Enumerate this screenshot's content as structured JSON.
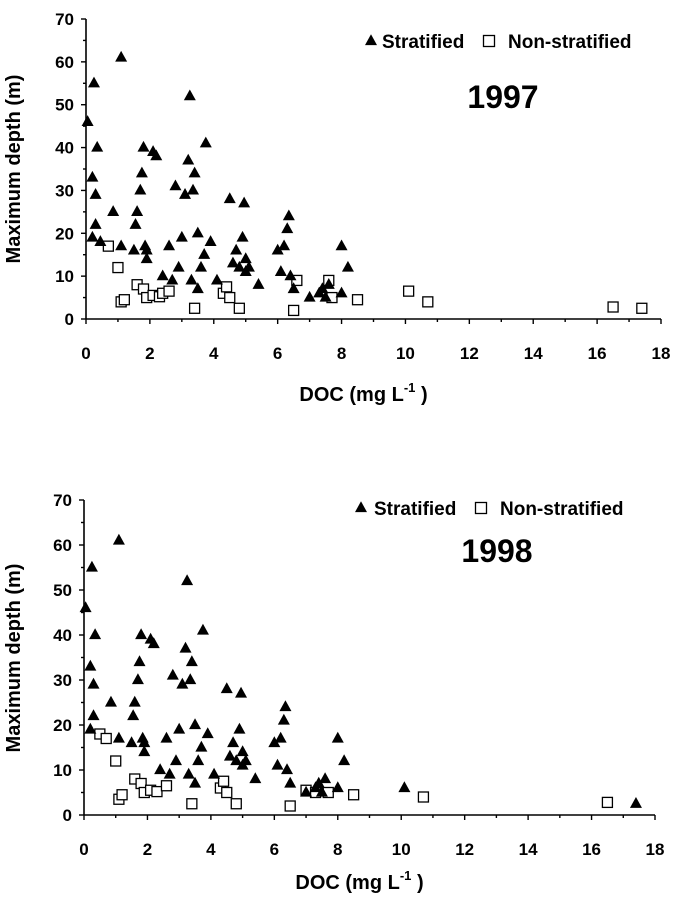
{
  "chart_data": [
    {
      "type": "scatter",
      "title": "1997",
      "xlabel": "DOC (mg L",
      "xlabel_sup": "-1",
      "xlabel_end": ")",
      "ylabel": "Maximum depth (m)",
      "xlim": [
        0,
        18
      ],
      "ylim": [
        0,
        70
      ],
      "xticks": [
        "0",
        "2",
        "4",
        "6",
        "8",
        "10",
        "12",
        "14",
        "16",
        "18"
      ],
      "yticks": [
        "0",
        "10",
        "20",
        "30",
        "40",
        "50",
        "60",
        "70"
      ],
      "grid": false,
      "legend_position": "top-right",
      "series": [
        {
          "name": "Stratified",
          "marker": "filled-triangle",
          "color": "#000000",
          "points": [
            [
              0.05,
              46
            ],
            [
              0.2,
              33
            ],
            [
              0.25,
              55
            ],
            [
              0.3,
              29
            ],
            [
              0.35,
              40
            ],
            [
              0.3,
              22
            ],
            [
              0.2,
              19
            ],
            [
              0.45,
              18
            ],
            [
              0.85,
              25
            ],
            [
              1.1,
              61
            ],
            [
              1.1,
              17
            ],
            [
              1.5,
              16
            ],
            [
              1.55,
              22
            ],
            [
              1.6,
              25
            ],
            [
              1.7,
              30
            ],
            [
              1.75,
              34
            ],
            [
              1.8,
              40
            ],
            [
              1.85,
              17
            ],
            [
              1.9,
              16
            ],
            [
              1.9,
              14
            ],
            [
              2.1,
              39
            ],
            [
              2.2,
              38
            ],
            [
              2.4,
              10
            ],
            [
              2.6,
              17
            ],
            [
              2.7,
              9
            ],
            [
              2.8,
              31
            ],
            [
              2.9,
              12
            ],
            [
              3.0,
              19
            ],
            [
              3.1,
              29
            ],
            [
              3.2,
              37
            ],
            [
              3.25,
              52
            ],
            [
              3.3,
              9
            ],
            [
              3.35,
              30
            ],
            [
              3.4,
              34
            ],
            [
              3.5,
              20
            ],
            [
              3.5,
              7
            ],
            [
              3.6,
              12
            ],
            [
              3.7,
              15
            ],
            [
              3.75,
              41
            ],
            [
              3.9,
              18
            ],
            [
              4.1,
              9
            ],
            [
              4.5,
              28
            ],
            [
              4.6,
              13
            ],
            [
              4.7,
              16
            ],
            [
              4.8,
              12
            ],
            [
              4.9,
              19
            ],
            [
              4.95,
              27
            ],
            [
              5.0,
              14
            ],
            [
              5.0,
              11
            ],
            [
              5.1,
              12
            ],
            [
              5.4,
              8
            ],
            [
              6.0,
              16
            ],
            [
              6.1,
              11
            ],
            [
              6.2,
              17
            ],
            [
              6.3,
              21
            ],
            [
              6.35,
              24
            ],
            [
              6.4,
              10
            ],
            [
              6.5,
              7
            ],
            [
              7.0,
              5
            ],
            [
              7.3,
              6
            ],
            [
              7.4,
              7
            ],
            [
              7.5,
              5
            ],
            [
              7.6,
              8
            ],
            [
              8.0,
              17
            ],
            [
              8.0,
              6
            ],
            [
              8.2,
              12
            ]
          ]
        },
        {
          "name": "Non-stratified",
          "marker": "open-square",
          "color": "#000000",
          "points": [
            [
              0.7,
              17
            ],
            [
              1.0,
              12
            ],
            [
              1.1,
              4
            ],
            [
              1.2,
              4.5
            ],
            [
              1.6,
              8
            ],
            [
              1.8,
              7
            ],
            [
              1.9,
              5
            ],
            [
              2.1,
              5.5
            ],
            [
              2.3,
              5.2
            ],
            [
              2.4,
              6
            ],
            [
              2.6,
              6.5
            ],
            [
              3.4,
              2.5
            ],
            [
              4.3,
              6
            ],
            [
              4.4,
              7.5
            ],
            [
              4.5,
              5
            ],
            [
              4.8,
              2.5
            ],
            [
              6.5,
              2
            ],
            [
              6.6,
              9
            ],
            [
              7.6,
              9
            ],
            [
              7.7,
              5
            ],
            [
              8.5,
              4.5
            ],
            [
              10.1,
              6.5
            ],
            [
              10.7,
              4
            ],
            [
              16.5,
              2.8
            ],
            [
              17.4,
              2.5
            ]
          ]
        }
      ]
    },
    {
      "type": "scatter",
      "title": "1998",
      "xlabel": "DOC (mg L",
      "xlabel_sup": "-1",
      "xlabel_end": ")",
      "ylabel": "Maximum depth (m)",
      "xlim": [
        0,
        18
      ],
      "ylim": [
        0,
        70
      ],
      "xticks": [
        "0",
        "2",
        "4",
        "6",
        "8",
        "10",
        "12",
        "14",
        "16",
        "18"
      ],
      "yticks": [
        "0",
        "10",
        "20",
        "30",
        "40",
        "50",
        "60",
        "70"
      ],
      "grid": false,
      "legend_position": "top-right",
      "series": [
        {
          "name": "Stratified",
          "marker": "filled-triangle",
          "color": "#000000",
          "points": [
            [
              0.05,
              46
            ],
            [
              0.2,
              33
            ],
            [
              0.25,
              55
            ],
            [
              0.3,
              29
            ],
            [
              0.35,
              40
            ],
            [
              0.3,
              22
            ],
            [
              0.2,
              19
            ],
            [
              0.85,
              25
            ],
            [
              1.1,
              61
            ],
            [
              1.1,
              17
            ],
            [
              1.5,
              16
            ],
            [
              1.55,
              22
            ],
            [
              1.6,
              25
            ],
            [
              1.7,
              30
            ],
            [
              1.75,
              34
            ],
            [
              1.8,
              40
            ],
            [
              1.85,
              17
            ],
            [
              1.9,
              16
            ],
            [
              1.9,
              14
            ],
            [
              2.1,
              39
            ],
            [
              2.2,
              38
            ],
            [
              2.4,
              10
            ],
            [
              2.6,
              17
            ],
            [
              2.7,
              9
            ],
            [
              2.8,
              31
            ],
            [
              2.9,
              12
            ],
            [
              3.0,
              19
            ],
            [
              3.1,
              29
            ],
            [
              3.2,
              37
            ],
            [
              3.25,
              52
            ],
            [
              3.3,
              9
            ],
            [
              3.35,
              30
            ],
            [
              3.4,
              34
            ],
            [
              3.5,
              20
            ],
            [
              3.5,
              7
            ],
            [
              3.6,
              12
            ],
            [
              3.7,
              15
            ],
            [
              3.75,
              41
            ],
            [
              3.9,
              18
            ],
            [
              4.1,
              9
            ],
            [
              4.5,
              28
            ],
            [
              4.6,
              13
            ],
            [
              4.7,
              16
            ],
            [
              4.8,
              12
            ],
            [
              4.9,
              19
            ],
            [
              4.95,
              27
            ],
            [
              5.0,
              14
            ],
            [
              5.0,
              11
            ],
            [
              5.1,
              12
            ],
            [
              5.4,
              8
            ],
            [
              6.0,
              16
            ],
            [
              6.1,
              11
            ],
            [
              6.2,
              17
            ],
            [
              6.3,
              21
            ],
            [
              6.35,
              24
            ],
            [
              6.4,
              10
            ],
            [
              6.5,
              7
            ],
            [
              7.0,
              5
            ],
            [
              7.3,
              6
            ],
            [
              7.4,
              7
            ],
            [
              7.5,
              5
            ],
            [
              7.6,
              8
            ],
            [
              8.0,
              17
            ],
            [
              8.0,
              6
            ],
            [
              8.2,
              12
            ],
            [
              10.1,
              6
            ],
            [
              17.4,
              2.5
            ]
          ]
        },
        {
          "name": "Non-stratified",
          "marker": "open-square",
          "color": "#000000",
          "points": [
            [
              0.5,
              18
            ],
            [
              0.7,
              17
            ],
            [
              1.0,
              12
            ],
            [
              1.1,
              3.5
            ],
            [
              1.2,
              4.5
            ],
            [
              1.6,
              8
            ],
            [
              1.8,
              7
            ],
            [
              1.9,
              5
            ],
            [
              2.1,
              5.5
            ],
            [
              2.3,
              5.2
            ],
            [
              2.6,
              6.5
            ],
            [
              3.4,
              2.5
            ],
            [
              4.3,
              6
            ],
            [
              4.4,
              7.5
            ],
            [
              4.5,
              5
            ],
            [
              4.8,
              2.5
            ],
            [
              6.5,
              2
            ],
            [
              7.0,
              5.5
            ],
            [
              7.3,
              5
            ],
            [
              7.7,
              5
            ],
            [
              8.5,
              4.5
            ],
            [
              10.7,
              4
            ],
            [
              16.5,
              2.8
            ]
          ]
        }
      ]
    }
  ]
}
